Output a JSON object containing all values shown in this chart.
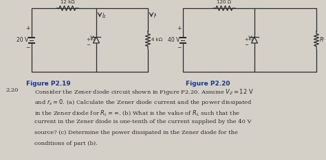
{
  "background_color": "#d4cfc7",
  "fig_width": 4.74,
  "fig_height": 2.34,
  "dpi": 100,
  "fig119_label": "Figure P2.19",
  "fig220_label": "Figure P2.20",
  "problem_number": "2.20",
  "problem_lines": [
    "Consider the Zener diode circuit shown in Figure P2.20. Assume V_Z = 12 V",
    "and r_z = 0. (a) Calculate the Zener diode current and the power dissipated",
    "in the Zener diode for R_L = ∞. (b) What is the value of R_L such that the",
    "current in the Zener diode is one-tenth of the current supplied by the 40 V",
    "source? (c) Determine the power dissipated in the Zener diode for the",
    "conditions of part (b)."
  ],
  "label_color": "#1a3580",
  "text_color": "#2a2a2a",
  "circuit_color": "#2a2a2a"
}
